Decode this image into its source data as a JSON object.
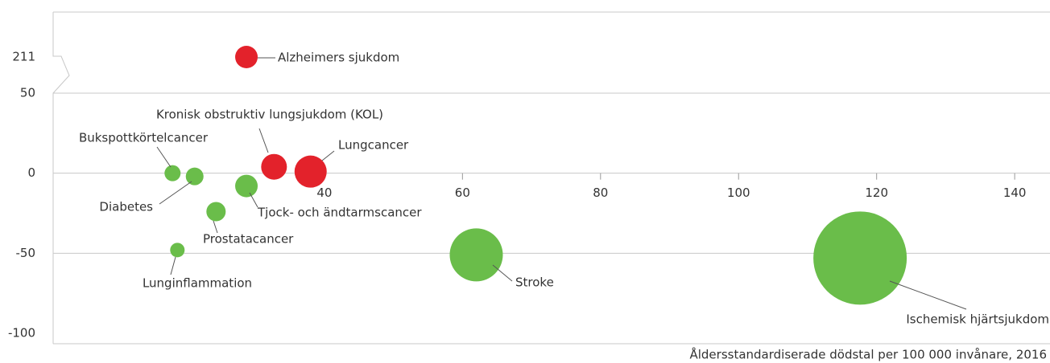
{
  "chart_data": {
    "type": "bubble",
    "x_label": "Åldersstandardiserade dödstal per 100 000 invånare, 2016",
    "categories": [
      "Alzheimers sjukdom",
      "Kronisk obstruktiv lungsjukdom (KOL)",
      "Lungcancer",
      "Bukspottkörtelcancer",
      "Diabetes",
      "Tjock- och ändtarmscancer",
      "Prostatacancer",
      "Lunginflammation",
      "Stroke",
      "Ischemisk hjärtsjukdom"
    ],
    "x": [
      28.7,
      32.7,
      38,
      18,
      21.2,
      28.7,
      24.3,
      18.7,
      62,
      117.6
    ],
    "values": [
      211,
      4,
      1,
      0,
      -2,
      -8,
      -24,
      -48,
      -51,
      -53
    ],
    "sizes": [
      14,
      16,
      20,
      10,
      11,
      14,
      12,
      9,
      33,
      58
    ],
    "colors": [
      "#e3222b",
      "#e3222b",
      "#e3222b",
      "#6abd4a",
      "#6abd4a",
      "#6abd4a",
      "#6abd4a",
      "#6abd4a",
      "#6abd4a",
      "#6abd4a"
    ],
    "xlim": [
      0,
      145
    ],
    "xticks": [
      40,
      60,
      80,
      100,
      120,
      140
    ],
    "ylim": [
      -100,
      211
    ],
    "ybreak": [
      50,
      211
    ],
    "yticks": [
      -100,
      -50,
      0,
      50,
      211
    ],
    "grid": true
  }
}
